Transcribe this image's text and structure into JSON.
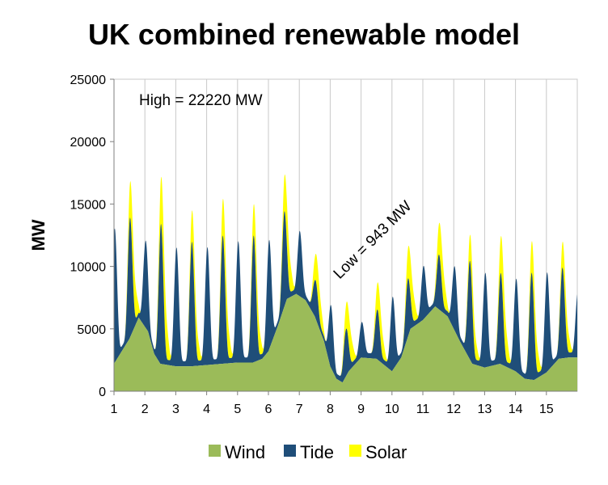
{
  "chart_data": {
    "type": "area",
    "stacked": true,
    "title": "UK combined renewable model",
    "xlabel": "",
    "ylabel": "MW",
    "ylim": [
      0,
      25000
    ],
    "yticks": [
      0,
      5000,
      10000,
      15000,
      20000,
      25000
    ],
    "xlim": [
      1,
      16
    ],
    "xticks": [
      1,
      2,
      3,
      4,
      5,
      6,
      7,
      8,
      9,
      10,
      11,
      12,
      13,
      14,
      15
    ],
    "grid": "vertical",
    "legend_position": "bottom",
    "annotations": [
      {
        "text": "High = 22220 MW",
        "x": 1.6,
        "y": 22220
      },
      {
        "text": "Low = 943 MW",
        "x": 8.3,
        "y": 943
      }
    ],
    "series": [
      {
        "name": "Wind",
        "color": "#9bbb59",
        "values": [
          [
            1.0,
            2200
          ],
          [
            1.5,
            4200
          ],
          [
            1.8,
            5900
          ],
          [
            2.1,
            4800
          ],
          [
            2.3,
            3000
          ],
          [
            2.5,
            2200
          ],
          [
            3.0,
            2000
          ],
          [
            3.5,
            2000
          ],
          [
            4.0,
            2100
          ],
          [
            4.5,
            2200
          ],
          [
            5.0,
            2300
          ],
          [
            5.5,
            2300
          ],
          [
            5.8,
            2600
          ],
          [
            6.0,
            3200
          ],
          [
            6.3,
            5200
          ],
          [
            6.6,
            7400
          ],
          [
            6.9,
            7800
          ],
          [
            7.2,
            7300
          ],
          [
            7.5,
            6000
          ],
          [
            7.8,
            4000
          ],
          [
            8.0,
            2000
          ],
          [
            8.2,
            1000
          ],
          [
            8.4,
            700
          ],
          [
            8.6,
            1600
          ],
          [
            9.0,
            2700
          ],
          [
            9.5,
            2600
          ],
          [
            9.8,
            2000
          ],
          [
            10.0,
            1600
          ],
          [
            10.3,
            2700
          ],
          [
            10.6,
            5000
          ],
          [
            11.0,
            5700
          ],
          [
            11.4,
            6800
          ],
          [
            11.8,
            6000
          ],
          [
            12.2,
            4000
          ],
          [
            12.6,
            2200
          ],
          [
            13.0,
            1900
          ],
          [
            13.5,
            2200
          ],
          [
            14.0,
            1600
          ],
          [
            14.3,
            1000
          ],
          [
            14.6,
            900
          ],
          [
            15.0,
            1500
          ],
          [
            15.4,
            2600
          ],
          [
            15.7,
            2700
          ],
          [
            16.0,
            2700
          ]
        ]
      },
      {
        "name": "Tide",
        "color": "#1f4e79",
        "tidal_peaks_per_day": 2,
        "tidal_peaks": [
          [
            1.0,
            13000
          ],
          [
            1.5,
            14000
          ],
          [
            2.0,
            12000
          ],
          [
            2.5,
            13500
          ],
          [
            3.0,
            11500
          ],
          [
            3.5,
            12000
          ],
          [
            4.0,
            11500
          ],
          [
            4.5,
            12500
          ],
          [
            5.0,
            12000
          ],
          [
            5.5,
            12500
          ],
          [
            6.0,
            12000
          ],
          [
            6.5,
            14500
          ],
          [
            7.0,
            13000
          ],
          [
            7.5,
            9000
          ],
          [
            8.0,
            7000
          ],
          [
            8.5,
            5000
          ],
          [
            9.0,
            5500
          ],
          [
            9.5,
            6500
          ],
          [
            10.0,
            7500
          ],
          [
            10.5,
            9000
          ],
          [
            11.0,
            10000
          ],
          [
            11.5,
            11000
          ],
          [
            12.0,
            10000
          ],
          [
            12.5,
            10500
          ],
          [
            13.0,
            9500
          ],
          [
            13.5,
            9500
          ],
          [
            14.0,
            9000
          ],
          [
            14.5,
            9500
          ],
          [
            15.0,
            9500
          ],
          [
            15.5,
            10000
          ],
          [
            16.0,
            8000
          ]
        ]
      },
      {
        "name": "Solar",
        "color": "#ffff00",
        "daily_peak_mw": [
          [
            1.6,
            3500
          ],
          [
            2.6,
            4500
          ],
          [
            3.6,
            3000
          ],
          [
            4.6,
            3500
          ],
          [
            5.6,
            3000
          ],
          [
            6.6,
            3500
          ],
          [
            7.6,
            2500
          ],
          [
            8.6,
            2500
          ],
          [
            9.6,
            2500
          ],
          [
            10.6,
            3000
          ],
          [
            11.6,
            3000
          ],
          [
            12.6,
            2500
          ],
          [
            13.6,
            3500
          ],
          [
            14.6,
            3000
          ],
          [
            15.6,
            2500
          ]
        ]
      }
    ]
  }
}
